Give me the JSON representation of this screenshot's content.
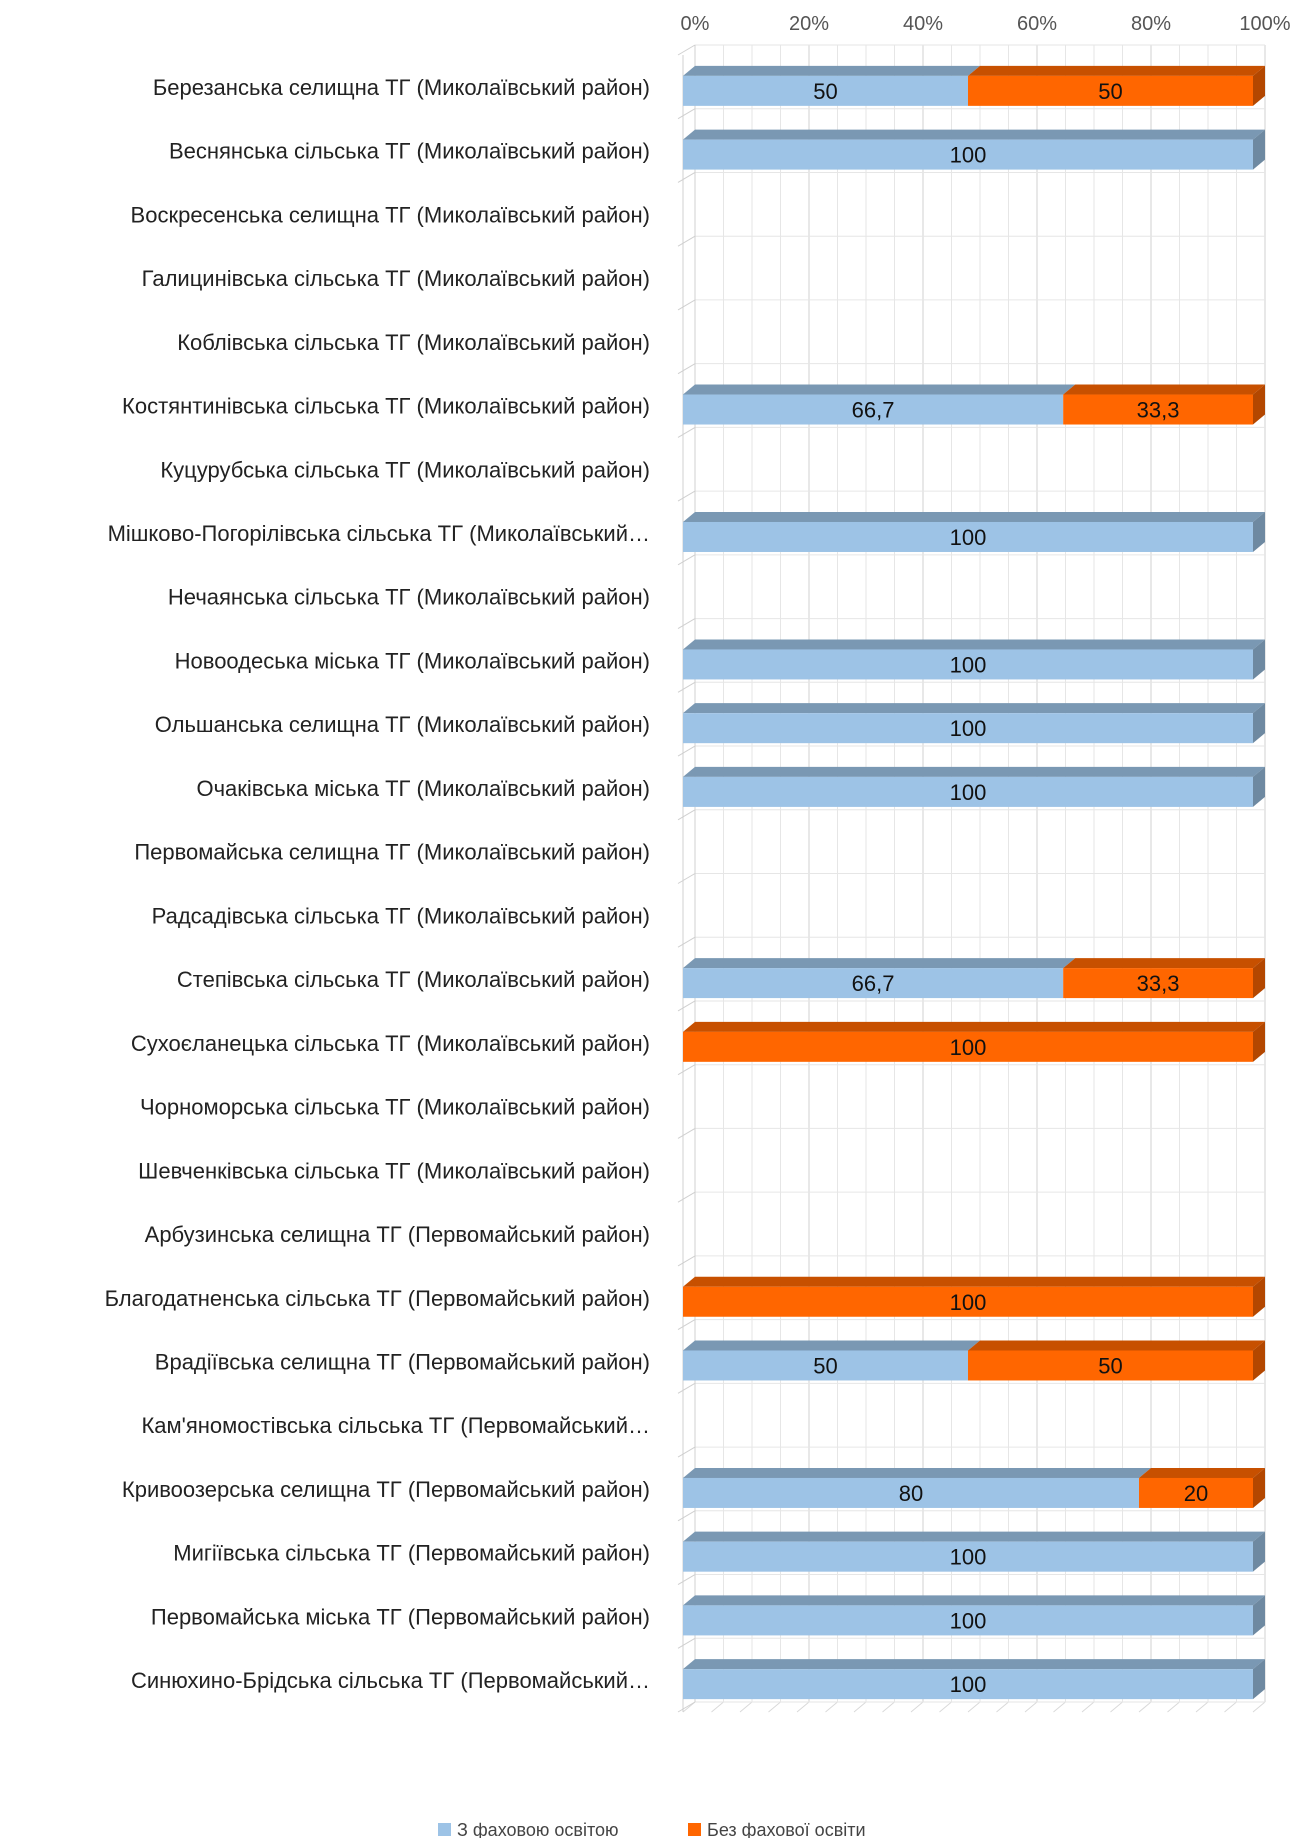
{
  "chart_data": {
    "type": "bar",
    "orientation": "horizontal",
    "stacked": "percent",
    "three_d": true,
    "categories": [
      "Березанська селищна ТГ (Миколаївський район)",
      "Веснянська сільська ТГ (Миколаївський район)",
      "Воскресенська  селищна ТГ (Миколаївський район)",
      "Галицинівська сільська ТГ (Миколаївський район)",
      "Коблівська сільська ТГ (Миколаївський район)",
      "Костянтинівська сільська ТГ (Миколаївський район)",
      "Куцурубська сільська ТГ (Миколаївський район)",
      "Мішково-Погорілівська сільська ТГ (Миколаївський…",
      "Нечаянська сільська ТГ (Миколаївський район)",
      "Новоодеська міська ТГ (Миколаївський район)",
      "Ольшанська селищна ТГ (Миколаївський район)",
      "Очаківська міська ТГ (Миколаївський район)",
      "Первомайська селищна ТГ (Миколаївський район)",
      "Радсадівська сільська ТГ (Миколаївський район)",
      "Степівська сільська ТГ (Миколаївський район)",
      "Сухоєланецька сільська ТГ (Миколаївський район)",
      "Чорноморська сільська ТГ (Миколаївський район)",
      "Шевченківська сільська ТГ (Миколаївський район)",
      "Арбузинська селищна ТГ (Первомайський район)",
      "Благодатненська сільська ТГ (Первомайський район)",
      "Врадіївська селищна ТГ (Первомайський район)",
      "Кам'яномостівська сільська ТГ (Первомайський…",
      "Кривоозерська селищна ТГ (Первомайський район)",
      "Мигіївська сільська ТГ (Первомайський район)",
      "Первомайська міська ТГ (Первомайський район)",
      "Синюхино-Брідська сільська ТГ (Первомайський…"
    ],
    "series": [
      {
        "name": "З фаховою освітою",
        "color": "#9DC3E6",
        "values": [
          50,
          100,
          null,
          null,
          null,
          66.7,
          null,
          100,
          null,
          100,
          100,
          100,
          null,
          null,
          66.7,
          null,
          null,
          null,
          null,
          null,
          50,
          null,
          80,
          100,
          100,
          100
        ],
        "labels": [
          "50",
          "100",
          "",
          "",
          "",
          "66,7",
          "",
          "100",
          "",
          "100",
          "100",
          "100",
          "",
          "",
          "66,7",
          "",
          "",
          "",
          "",
          "",
          "50",
          "",
          "80",
          "100",
          "100",
          "100"
        ]
      },
      {
        "name": "Без фахової освіти",
        "color": "#FF6600",
        "values": [
          50,
          null,
          null,
          null,
          null,
          33.3,
          null,
          null,
          null,
          null,
          null,
          null,
          null,
          null,
          33.3,
          100,
          null,
          null,
          null,
          100,
          50,
          null,
          20,
          null,
          null,
          null
        ],
        "labels": [
          "50",
          "",
          "",
          "",
          "",
          "33,3",
          "",
          "",
          "",
          "",
          "",
          "",
          "",
          "",
          "33,3",
          "100",
          "",
          "",
          "",
          "100",
          "50",
          "",
          "20",
          "",
          "",
          ""
        ]
      }
    ],
    "x_ticks": [
      "0%",
      "20%",
      "40%",
      "60%",
      "80%",
      "100%"
    ],
    "xlim": [
      0,
      100
    ],
    "grid": true,
    "legend_position": "bottom"
  }
}
